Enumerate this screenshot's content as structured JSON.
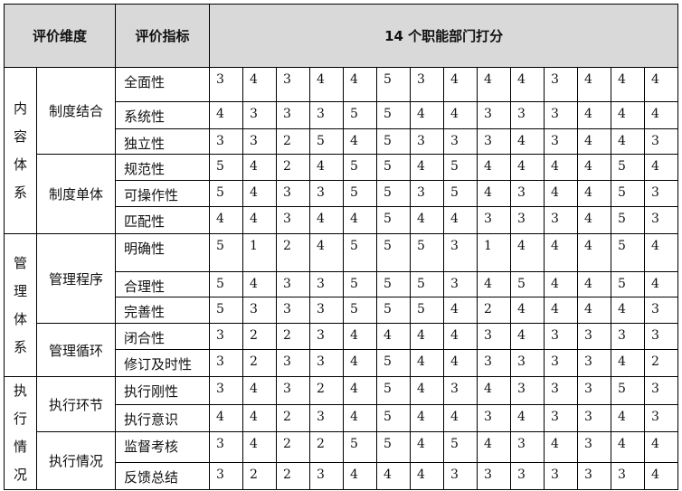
{
  "header": {
    "dimension": "评价维度",
    "indicator": "评价指标",
    "scores": "14 个职能部门打分"
  },
  "header_bg": "#d9d9d9",
  "groups": [
    {
      "dimension": "内容体系",
      "subgroups": [
        {
          "name": "制度结合",
          "rows": [
            {
              "indicator": "全面性",
              "scores": [
                3,
                4,
                3,
                4,
                4,
                5,
                3,
                4,
                4,
                4,
                3,
                4,
                4,
                4
              ]
            },
            {
              "indicator": "系统性",
              "scores": [
                4,
                3,
                3,
                3,
                5,
                5,
                4,
                4,
                3,
                3,
                3,
                4,
                4,
                4
              ]
            },
            {
              "indicator": "独立性",
              "scores": [
                3,
                3,
                2,
                5,
                4,
                5,
                3,
                3,
                3,
                4,
                3,
                4,
                4,
                3
              ]
            }
          ]
        },
        {
          "name": "制度单体",
          "rows": [
            {
              "indicator": "规范性",
              "scores": [
                5,
                4,
                2,
                4,
                5,
                5,
                4,
                5,
                4,
                4,
                4,
                4,
                5,
                4
              ]
            },
            {
              "indicator": "可操作性",
              "scores": [
                5,
                4,
                3,
                3,
                5,
                5,
                3,
                5,
                4,
                3,
                4,
                4,
                5,
                3
              ]
            },
            {
              "indicator": "匹配性",
              "scores": [
                4,
                4,
                3,
                4,
                4,
                5,
                4,
                4,
                3,
                3,
                3,
                4,
                5,
                3
              ]
            }
          ]
        }
      ]
    },
    {
      "dimension": "管理体系",
      "subgroups": [
        {
          "name": "管理程序",
          "rows": [
            {
              "indicator": "明确性",
              "scores": [
                5,
                1,
                2,
                4,
                5,
                5,
                5,
                3,
                1,
                4,
                4,
                4,
                5,
                4
              ]
            },
            {
              "indicator": "合理性",
              "scores": [
                5,
                4,
                3,
                3,
                5,
                5,
                5,
                3,
                4,
                5,
                4,
                4,
                5,
                4
              ]
            },
            {
              "indicator": "完善性",
              "scores": [
                5,
                3,
                3,
                3,
                5,
                5,
                5,
                4,
                2,
                4,
                4,
                4,
                4,
                3
              ]
            }
          ]
        },
        {
          "name": "管理循环",
          "rows": [
            {
              "indicator": "闭合性",
              "scores": [
                3,
                2,
                2,
                3,
                4,
                4,
                4,
                4,
                3,
                4,
                3,
                3,
                3,
                3
              ]
            },
            {
              "indicator": "修订及时性",
              "scores": [
                3,
                2,
                3,
                3,
                4,
                5,
                4,
                4,
                3,
                3,
                3,
                3,
                4,
                2
              ]
            }
          ]
        }
      ]
    },
    {
      "dimension": "执行情况",
      "subgroups": [
        {
          "name": "执行环节",
          "rows": [
            {
              "indicator": "执行刚性",
              "scores": [
                3,
                4,
                3,
                2,
                4,
                5,
                4,
                3,
                4,
                3,
                3,
                3,
                5,
                3
              ]
            },
            {
              "indicator": "执行意识",
              "scores": [
                4,
                4,
                2,
                3,
                4,
                5,
                4,
                4,
                3,
                4,
                3,
                3,
                4,
                3
              ]
            }
          ]
        },
        {
          "name": "执行情况",
          "rows": [
            {
              "indicator": "监督考核",
              "scores": [
                3,
                4,
                2,
                2,
                5,
                5,
                4,
                5,
                4,
                3,
                4,
                3,
                4,
                4
              ]
            },
            {
              "indicator": "反馈总结",
              "scores": [
                3,
                2,
                2,
                3,
                4,
                4,
                4,
                3,
                3,
                3,
                3,
                3,
                3,
                4
              ]
            }
          ]
        }
      ]
    }
  ]
}
